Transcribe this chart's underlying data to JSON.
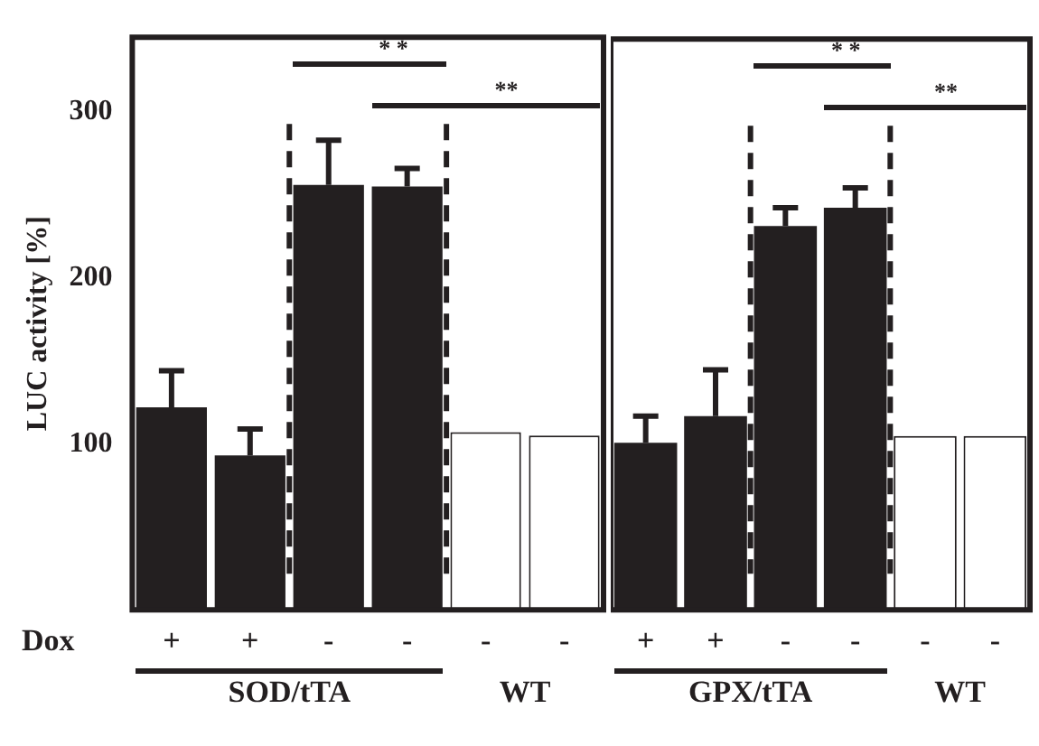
{
  "chart_data": [
    {
      "type": "bar",
      "ylabel": "LUC activity [%]",
      "categories": [
        "+",
        "+",
        "-",
        "-",
        "-",
        "-"
      ],
      "ylim": [
        0,
        345
      ],
      "yticks": [
        100,
        200,
        300
      ],
      "grid": false,
      "legend": false,
      "values": [
        122,
        93,
        256,
        255,
        107,
        105
      ],
      "errors": [
        [
          122,
          144
        ],
        [
          93,
          109
        ],
        [
          256,
          283
        ],
        [
          255,
          266
        ],
        null,
        null
      ],
      "colors": [
        "#231f20",
        "#231f20",
        "#231f20",
        "#231f20",
        "#ffffff",
        "#ffffff"
      ],
      "annotations": [
        "Dox",
        "SOD/tTA",
        "WT",
        "* *",
        "**"
      ]
    },
    {
      "type": "bar",
      "categories": [
        "+",
        "+",
        "-",
        "-",
        "-",
        "-"
      ],
      "ylim": [
        0,
        345
      ],
      "yticks": [
        100,
        200,
        300
      ],
      "tick_labels": "x",
      "grid": false,
      "legend": false,
      "values": [
        101,
        117,
        232,
        243,
        105,
        105
      ],
      "errors": [
        [
          101,
          117
        ],
        [
          117,
          145
        ],
        [
          232,
          243
        ],
        [
          243,
          255
        ],
        null,
        null
      ],
      "colors": [
        "#231f20",
        "#231f20",
        "#231f20",
        "#231f20",
        "#ffffff",
        "#ffffff"
      ],
      "annotations": [
        "GPX/tTA",
        "WT",
        "* *",
        "**"
      ]
    }
  ]
}
